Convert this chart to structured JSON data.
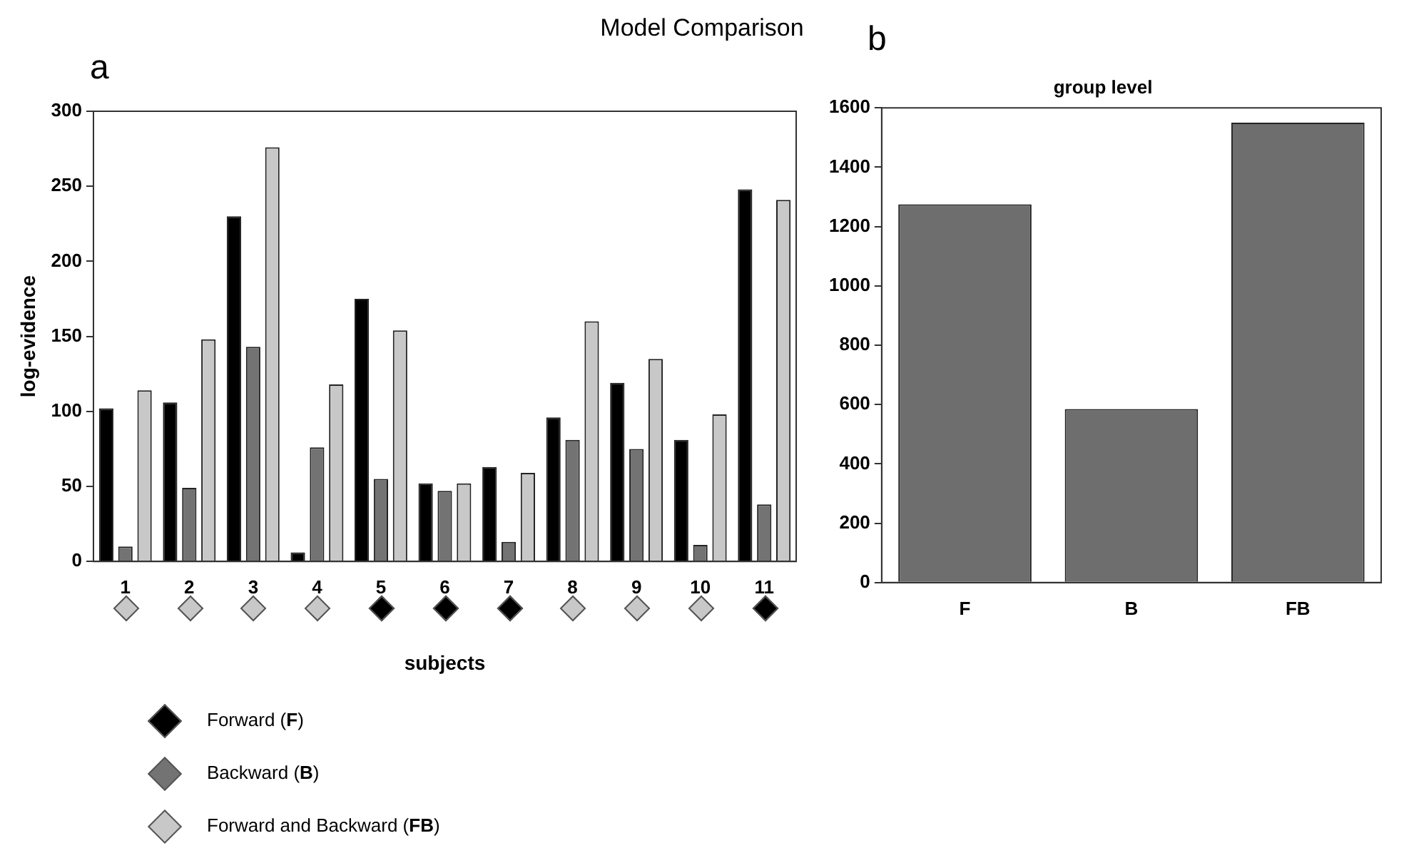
{
  "chart_data": [
    {
      "type": "bar",
      "title": "Model Comparison",
      "annotations": [
        "a"
      ],
      "xlabel": "subjects",
      "ylabel": "log-evidence",
      "categories": [
        "1",
        "2",
        "3",
        "4",
        "5",
        "6",
        "7",
        "8",
        "9",
        "10",
        "11"
      ],
      "series": [
        {
          "name": "Forward (F)",
          "color": "#000000",
          "values": [
            102,
            106,
            230,
            6,
            175,
            52,
            63,
            96,
            119,
            81,
            248
          ]
        },
        {
          "name": "Backward (B)",
          "color": "#737373",
          "values": [
            10,
            49,
            143,
            76,
            55,
            47,
            13,
            81,
            75,
            11,
            38
          ]
        },
        {
          "name": "Forward and Backward (FB)",
          "color": "#c8c8c8",
          "values": [
            114,
            148,
            276,
            118,
            154,
            52,
            59,
            160,
            135,
            98,
            241
          ]
        }
      ],
      "ylim": [
        0,
        300
      ],
      "yticks": [
        0,
        50,
        100,
        150,
        200,
        250,
        300
      ],
      "legend": "bottom left"
    },
    {
      "type": "bar",
      "title": "group level",
      "annotations": [
        "b"
      ],
      "categories": [
        "F",
        "B",
        "FB"
      ],
      "values": [
        1275,
        585,
        1550
      ],
      "color": "#6e6e6e",
      "ylim": [
        0,
        1600
      ],
      "yticks": [
        0,
        200,
        400,
        600,
        800,
        1000,
        1200,
        1400,
        1600
      ]
    }
  ]
}
